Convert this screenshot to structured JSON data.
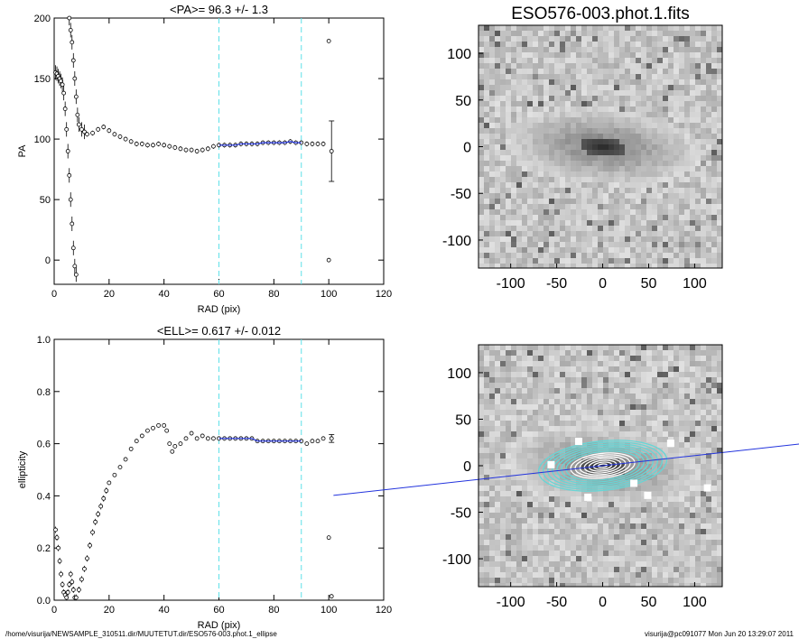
{
  "footer": {
    "left": "/home/visurija/NEWSAMPLE_310511.dir/MUUTETUT.dir/ESO576-003.phot.1_ellipse",
    "right": "visurija@pc091077  Mon Jun 20 13:29:07 2011"
  },
  "chart_data": [
    {
      "type": "scatter",
      "title": "<PA>=  96.3 +/-   1.3",
      "xlabel": "RAD (pix)",
      "ylabel": "PA",
      "xlim": [
        0,
        120
      ],
      "ylim": [
        -20,
        200
      ],
      "xticks": [
        "0",
        "20",
        "40",
        "60",
        "80",
        "100",
        "120"
      ],
      "yticks": [
        "0",
        "50",
        "100",
        "150",
        "200"
      ],
      "vlines": [
        60,
        90
      ],
      "mean_point": {
        "x": 101,
        "y": 90,
        "err": 25
      },
      "outliers": [
        {
          "x": 100,
          "y": 181
        },
        {
          "x": 100,
          "y": 0
        }
      ],
      "fit_range": [
        60,
        90
      ],
      "points": [
        [
          0.5,
          155
        ],
        [
          1,
          154
        ],
        [
          1.5,
          152
        ],
        [
          2,
          150
        ],
        [
          2.5,
          148
        ],
        [
          3,
          145
        ],
        [
          3.5,
          138
        ],
        [
          4,
          125
        ],
        [
          4.5,
          108
        ],
        [
          5,
          90
        ],
        [
          5.5,
          70
        ],
        [
          6,
          50
        ],
        [
          6.5,
          30
        ],
        [
          7,
          10
        ],
        [
          7.5,
          -5
        ],
        [
          8,
          -12
        ],
        [
          5.5,
          200
        ],
        [
          6,
          190
        ],
        [
          6.5,
          180
        ],
        [
          7,
          165
        ],
        [
          7.5,
          150
        ],
        [
          8,
          135
        ],
        [
          8.5,
          120
        ],
        [
          9,
          112
        ],
        [
          10,
          108
        ],
        [
          11,
          106
        ],
        [
          12,
          104
        ],
        [
          14,
          105
        ],
        [
          16,
          108
        ],
        [
          18,
          110
        ],
        [
          20,
          107
        ],
        [
          22,
          104
        ],
        [
          24,
          102
        ],
        [
          26,
          100
        ],
        [
          28,
          98
        ],
        [
          30,
          96
        ],
        [
          32,
          96
        ],
        [
          34,
          95
        ],
        [
          36,
          95
        ],
        [
          38,
          96
        ],
        [
          40,
          95
        ],
        [
          42,
          94
        ],
        [
          44,
          93
        ],
        [
          46,
          92
        ],
        [
          48,
          91
        ],
        [
          50,
          91
        ],
        [
          52,
          90
        ],
        [
          54,
          91
        ],
        [
          56,
          92
        ],
        [
          58,
          94
        ],
        [
          60,
          95
        ],
        [
          62,
          95
        ],
        [
          64,
          95
        ],
        [
          66,
          95
        ],
        [
          68,
          96
        ],
        [
          70,
          96
        ],
        [
          72,
          96
        ],
        [
          74,
          96
        ],
        [
          76,
          97
        ],
        [
          78,
          97
        ],
        [
          80,
          97
        ],
        [
          82,
          97
        ],
        [
          84,
          97
        ],
        [
          86,
          98
        ],
        [
          88,
          97
        ],
        [
          90,
          97
        ],
        [
          92,
          96
        ],
        [
          94,
          96
        ],
        [
          96,
          96
        ],
        [
          98,
          96
        ]
      ]
    },
    {
      "type": "scatter",
      "title": "<ELL>= 0.617 +/-  0.012",
      "xlabel": "RAD (pix)",
      "ylabel": "ellipticity",
      "xlim": [
        0,
        120
      ],
      "ylim": [
        0,
        1
      ],
      "xticks": [
        "0",
        "20",
        "40",
        "60",
        "80",
        "100",
        "120"
      ],
      "yticks": [
        "0.0",
        "0.2",
        "0.4",
        "0.6",
        "0.8",
        "1.0"
      ],
      "vlines": [
        60,
        90
      ],
      "fit_range": [
        60,
        90
      ],
      "mean_point": {
        "x": 101,
        "y": 0.62,
        "err": 0.015
      },
      "outliers": [
        {
          "x": 100,
          "y": 0.24
        },
        {
          "x": 101,
          "y": 0.015
        }
      ],
      "points": [
        [
          0.5,
          0.27
        ],
        [
          1,
          0.24
        ],
        [
          1.5,
          0.2
        ],
        [
          2,
          0.15
        ],
        [
          2.5,
          0.1
        ],
        [
          3,
          0.06
        ],
        [
          3.5,
          0.03
        ],
        [
          4,
          0.02
        ],
        [
          4.5,
          0.01
        ],
        [
          5,
          0.03
        ],
        [
          5.5,
          0.06
        ],
        [
          6,
          0.1
        ],
        [
          6.5,
          0.07
        ],
        [
          7,
          0.04
        ],
        [
          7.5,
          0.01
        ],
        [
          8,
          0.01
        ],
        [
          9,
          0.04
        ],
        [
          10,
          0.08
        ],
        [
          11,
          0.12
        ],
        [
          12,
          0.16
        ],
        [
          13,
          0.21
        ],
        [
          14,
          0.26
        ],
        [
          15,
          0.3
        ],
        [
          16,
          0.33
        ],
        [
          17,
          0.36
        ],
        [
          18,
          0.39
        ],
        [
          19,
          0.42
        ],
        [
          20,
          0.45
        ],
        [
          22,
          0.48
        ],
        [
          24,
          0.51
        ],
        [
          26,
          0.54
        ],
        [
          28,
          0.58
        ],
        [
          30,
          0.61
        ],
        [
          32,
          0.63
        ],
        [
          34,
          0.65
        ],
        [
          36,
          0.66
        ],
        [
          38,
          0.67
        ],
        [
          40,
          0.67
        ],
        [
          41,
          0.65
        ],
        [
          42,
          0.6
        ],
        [
          43,
          0.57
        ],
        [
          44,
          0.59
        ],
        [
          46,
          0.6
        ],
        [
          48,
          0.62
        ],
        [
          50,
          0.64
        ],
        [
          52,
          0.62
        ],
        [
          54,
          0.63
        ],
        [
          56,
          0.62
        ],
        [
          58,
          0.62
        ],
        [
          60,
          0.62
        ],
        [
          62,
          0.62
        ],
        [
          64,
          0.62
        ],
        [
          66,
          0.62
        ],
        [
          68,
          0.62
        ],
        [
          70,
          0.62
        ],
        [
          72,
          0.62
        ],
        [
          74,
          0.61
        ],
        [
          76,
          0.61
        ],
        [
          78,
          0.61
        ],
        [
          80,
          0.61
        ],
        [
          82,
          0.61
        ],
        [
          84,
          0.61
        ],
        [
          86,
          0.61
        ],
        [
          88,
          0.61
        ],
        [
          90,
          0.61
        ],
        [
          92,
          0.6
        ],
        [
          94,
          0.61
        ],
        [
          96,
          0.61
        ],
        [
          98,
          0.62
        ]
      ]
    },
    {
      "type": "heatmap",
      "title": "ESO576-003.phot.1.fits",
      "xlim": [
        -135,
        130
      ],
      "ylim": [
        -130,
        130
      ],
      "xticks": [
        "-100",
        "-50",
        "0",
        "50",
        "100"
      ],
      "yticks": [
        "-100",
        "-50",
        "0",
        "50",
        "100"
      ],
      "galaxy": {
        "center": [
          0,
          0
        ],
        "semi_major": 105,
        "semi_minor": 40,
        "pa_deg": 96.3
      }
    },
    {
      "type": "heatmap",
      "title": "",
      "xlim": [
        -135,
        130
      ],
      "ylim": [
        -130,
        130
      ],
      "xticks": [
        "-100",
        "-50",
        "0",
        "50",
        "100"
      ],
      "yticks": [
        "-100",
        "-50",
        "0",
        "50",
        "100"
      ],
      "ellipse_overlay": {
        "rings": 14,
        "max_semi_major": 70,
        "ellipticity": 0.617
      },
      "major_axis_line": {
        "angle_deg": 6.3
      }
    }
  ]
}
